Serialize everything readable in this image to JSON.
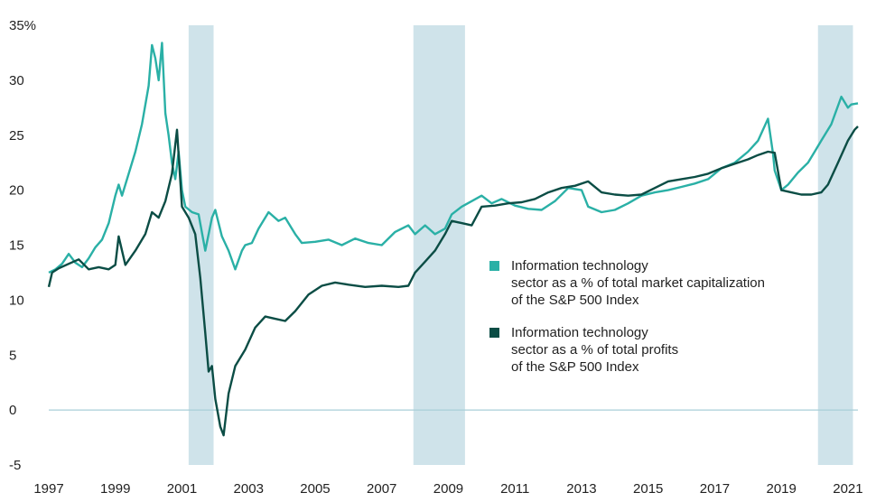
{
  "chart_data": {
    "type": "line",
    "xlim": [
      1997.0,
      2021.3
    ],
    "ylim": [
      -5,
      35
    ],
    "y_ticks": [
      {
        "value": 35,
        "label": "35%"
      },
      {
        "value": 30,
        "label": "30"
      },
      {
        "value": 25,
        "label": "25"
      },
      {
        "value": 20,
        "label": "20"
      },
      {
        "value": 15,
        "label": "15"
      },
      {
        "value": 10,
        "label": "10"
      },
      {
        "value": 5,
        "label": "5"
      },
      {
        "value": 0,
        "label": "0"
      },
      {
        "value": -5,
        "label": "-5"
      }
    ],
    "x_ticks": [
      "1997",
      "1999",
      "2001",
      "2003",
      "2005",
      "2007",
      "2009",
      "2011",
      "2013",
      "2015",
      "2017",
      "2019",
      "2021"
    ],
    "grid": false,
    "zero_line": true,
    "shaded_periods": [
      {
        "start": 2001.2,
        "end": 2001.95
      },
      {
        "start": 2007.95,
        "end": 2009.5
      },
      {
        "start": 2020.1,
        "end": 2021.15
      }
    ],
    "legend_position": "right-center",
    "colors": {
      "market_cap": "#2ab0a6",
      "profits": "#0b4d45",
      "shading": "#cfe3ea",
      "zero_line": "#a9cfd8"
    },
    "series": [
      {
        "name": "Information technology sector as a % of total market capitalization of the S&P 500 Index",
        "legend_lines": [
          "Information technology",
          "sector as a % of total market capitalization",
          "of the S&P 500 Index"
        ],
        "x": [
          1997.0,
          1997.2,
          1997.4,
          1997.6,
          1997.8,
          1998.0,
          1998.2,
          1998.4,
          1998.6,
          1998.8,
          1999.0,
          1999.1,
          1999.2,
          1999.4,
          1999.6,
          1999.8,
          2000.0,
          2000.1,
          2000.2,
          2000.3,
          2000.4,
          2000.5,
          2000.6,
          2000.7,
          2000.8,
          2000.9,
          2001.0,
          2001.1,
          2001.3,
          2001.5,
          2001.7,
          2001.9,
          2002.0,
          2002.2,
          2002.4,
          2002.6,
          2002.8,
          2002.9,
          2003.1,
          2003.3,
          2003.6,
          2003.9,
          2004.1,
          2004.4,
          2004.6,
          2005.0,
          2005.4,
          2005.8,
          2006.2,
          2006.6,
          2007.0,
          2007.4,
          2007.8,
          2008.0,
          2008.3,
          2008.6,
          2008.9,
          2009.1,
          2009.4,
          2009.7,
          2010.0,
          2010.3,
          2010.6,
          2011.0,
          2011.4,
          2011.8,
          2012.2,
          2012.6,
          2013.0,
          2013.2,
          2013.6,
          2014.0,
          2014.4,
          2014.8,
          2015.2,
          2015.6,
          2016.0,
          2016.4,
          2016.8,
          2017.2,
          2017.6,
          2018.0,
          2018.3,
          2018.6,
          2018.75,
          2018.8,
          2019.0,
          2019.2,
          2019.5,
          2019.8,
          2020.0,
          2020.2,
          2020.5,
          2020.8,
          2021.0,
          2021.1,
          2021.3
        ],
        "y": [
          12.5,
          12.8,
          13.3,
          14.2,
          13.4,
          13.0,
          13.8,
          14.8,
          15.5,
          17.0,
          19.5,
          20.5,
          19.5,
          21.5,
          23.5,
          26.0,
          29.5,
          33.2,
          32.0,
          30.0,
          33.4,
          27.0,
          25.0,
          22.5,
          21.0,
          23.5,
          20.0,
          18.5,
          18.0,
          17.8,
          14.5,
          17.5,
          18.2,
          15.8,
          14.5,
          12.8,
          14.5,
          15.0,
          15.2,
          16.5,
          18.0,
          17.2,
          17.5,
          16.0,
          15.2,
          15.3,
          15.5,
          15.0,
          15.6,
          15.2,
          15.0,
          16.2,
          16.8,
          16.0,
          16.8,
          16.0,
          16.5,
          17.8,
          18.5,
          19.0,
          19.5,
          18.8,
          19.2,
          18.6,
          18.3,
          18.2,
          19.0,
          20.2,
          20.0,
          18.5,
          18.0,
          18.2,
          18.8,
          19.5,
          19.8,
          20.0,
          20.3,
          20.6,
          21.0,
          22.0,
          22.5,
          23.5,
          24.5,
          26.5,
          23.3,
          21.8,
          20.0,
          20.5,
          21.6,
          22.5,
          23.5,
          24.5,
          26.0,
          28.5,
          27.5,
          27.8,
          27.9
        ]
      },
      {
        "name": "Information technology sector as a % of total profits of the S&P 500 Index",
        "legend_lines": [
          "Information technology",
          "sector as a % of total profits",
          "of the S&P 500 Index"
        ],
        "x": [
          1997.0,
          1997.1,
          1997.3,
          1997.6,
          1997.9,
          1998.2,
          1998.5,
          1998.8,
          1999.0,
          1999.1,
          1999.3,
          1999.6,
          1999.9,
          2000.1,
          2000.3,
          2000.5,
          2000.7,
          2000.85,
          2001.0,
          2001.2,
          2001.4,
          2001.55,
          2001.7,
          2001.8,
          2001.9,
          2002.0,
          2002.15,
          2002.25,
          2002.4,
          2002.6,
          2002.9,
          2003.2,
          2003.5,
          2003.8,
          2004.1,
          2004.4,
          2004.8,
          2005.2,
          2005.6,
          2006.0,
          2006.5,
          2007.0,
          2007.5,
          2007.8,
          2008.0,
          2008.3,
          2008.6,
          2008.9,
          2009.1,
          2009.4,
          2009.7,
          2010.0,
          2010.4,
          2010.8,
          2011.2,
          2011.6,
          2012.0,
          2012.4,
          2012.8,
          2013.2,
          2013.6,
          2014.0,
          2014.4,
          2014.8,
          2015.2,
          2015.6,
          2016.0,
          2016.4,
          2016.8,
          2017.2,
          2017.6,
          2018.0,
          2018.3,
          2018.6,
          2018.8,
          2019.0,
          2019.3,
          2019.6,
          2019.9,
          2020.2,
          2020.4,
          2020.7,
          2021.0,
          2021.2,
          2021.3
        ],
        "y": [
          11.2,
          12.5,
          12.9,
          13.3,
          13.7,
          12.8,
          13.0,
          12.8,
          13.2,
          15.8,
          13.2,
          14.5,
          16.0,
          18.0,
          17.5,
          19.0,
          21.5,
          25.5,
          18.5,
          17.5,
          16.0,
          12.0,
          7.0,
          3.5,
          4.0,
          1.0,
          -1.5,
          -2.3,
          1.5,
          4.0,
          5.5,
          7.5,
          8.5,
          8.3,
          8.1,
          9.0,
          10.5,
          11.3,
          11.6,
          11.4,
          11.2,
          11.3,
          11.2,
          11.3,
          12.5,
          13.5,
          14.5,
          16.0,
          17.2,
          17.0,
          16.8,
          18.5,
          18.6,
          18.8,
          18.9,
          19.2,
          19.8,
          20.2,
          20.4,
          20.8,
          19.8,
          19.6,
          19.5,
          19.6,
          20.2,
          20.8,
          21.0,
          21.2,
          21.5,
          22.0,
          22.4,
          22.8,
          23.2,
          23.5,
          23.4,
          20.0,
          19.8,
          19.6,
          19.6,
          19.8,
          20.5,
          22.5,
          24.5,
          25.5,
          25.8
        ]
      }
    ]
  }
}
